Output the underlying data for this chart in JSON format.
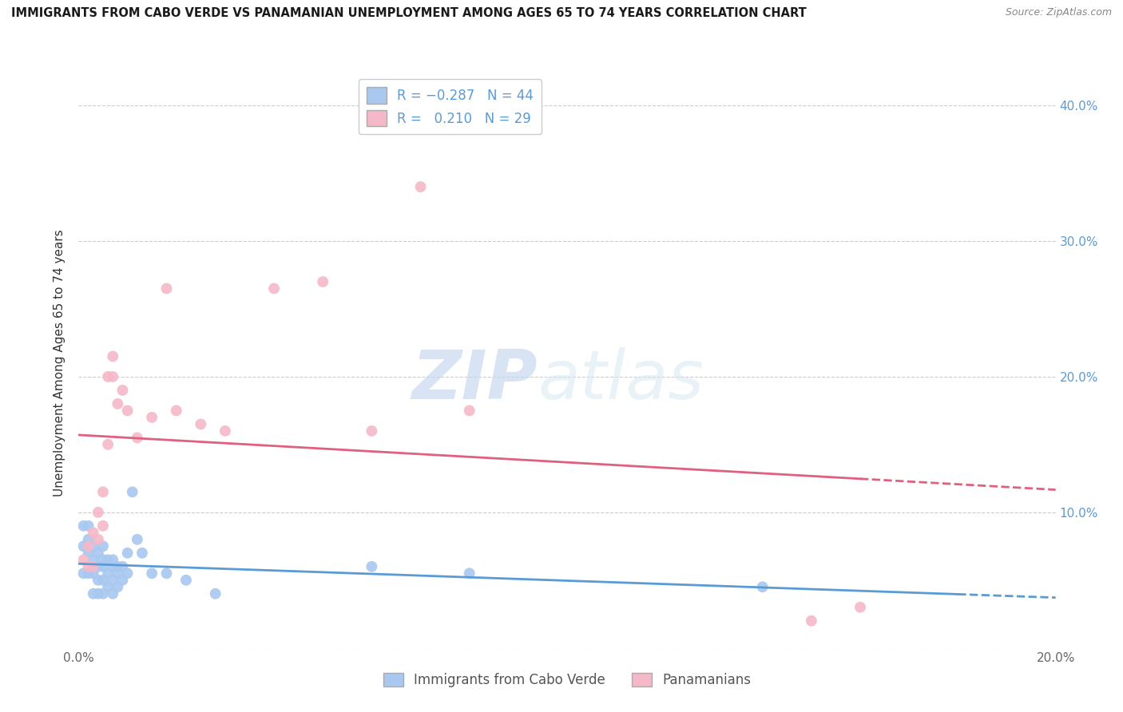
{
  "title": "IMMIGRANTS FROM CABO VERDE VS PANAMANIAN UNEMPLOYMENT AMONG AGES 65 TO 74 YEARS CORRELATION CHART",
  "source": "Source: ZipAtlas.com",
  "ylabel": "Unemployment Among Ages 65 to 74 years",
  "xlim": [
    0.0,
    0.2
  ],
  "ylim": [
    0.0,
    0.42
  ],
  "x_ticks": [
    0.0,
    0.05,
    0.1,
    0.15,
    0.2
  ],
  "x_tick_labels": [
    "0.0%",
    "",
    "",
    "",
    "20.0%"
  ],
  "y_ticks": [
    0.0,
    0.1,
    0.2,
    0.3,
    0.4
  ],
  "y_tick_labels_right": [
    "",
    "10.0%",
    "20.0%",
    "30.0%",
    "40.0%"
  ],
  "legend_label1": "Immigrants from Cabo Verde",
  "legend_label2": "Panamanians",
  "cabo_verde_color": "#a8c8f0",
  "panama_color": "#f5b8c8",
  "cabo_verde_line_color": "#5b9bd5",
  "panama_line_color": "#e06080",
  "watermark_zip": "ZIP",
  "watermark_atlas": "atlas",
  "cabo_verde_x": [
    0.001,
    0.001,
    0.001,
    0.002,
    0.002,
    0.002,
    0.002,
    0.003,
    0.003,
    0.003,
    0.003,
    0.004,
    0.004,
    0.004,
    0.004,
    0.005,
    0.005,
    0.005,
    0.005,
    0.005,
    0.006,
    0.006,
    0.006,
    0.007,
    0.007,
    0.007,
    0.007,
    0.008,
    0.008,
    0.008,
    0.009,
    0.009,
    0.01,
    0.01,
    0.011,
    0.012,
    0.013,
    0.015,
    0.018,
    0.022,
    0.028,
    0.06,
    0.08,
    0.14
  ],
  "cabo_verde_y": [
    0.09,
    0.075,
    0.055,
    0.09,
    0.08,
    0.07,
    0.055,
    0.075,
    0.065,
    0.055,
    0.04,
    0.07,
    0.06,
    0.05,
    0.04,
    0.075,
    0.065,
    0.06,
    0.05,
    0.04,
    0.065,
    0.055,
    0.045,
    0.065,
    0.06,
    0.05,
    0.04,
    0.06,
    0.055,
    0.045,
    0.06,
    0.05,
    0.07,
    0.055,
    0.115,
    0.08,
    0.07,
    0.055,
    0.055,
    0.05,
    0.04,
    0.06,
    0.055,
    0.045
  ],
  "panama_x": [
    0.001,
    0.002,
    0.002,
    0.003,
    0.003,
    0.004,
    0.004,
    0.005,
    0.005,
    0.006,
    0.006,
    0.007,
    0.007,
    0.008,
    0.009,
    0.01,
    0.012,
    0.015,
    0.018,
    0.02,
    0.025,
    0.03,
    0.04,
    0.05,
    0.06,
    0.07,
    0.08,
    0.15,
    0.16
  ],
  "panama_y": [
    0.065,
    0.075,
    0.06,
    0.085,
    0.06,
    0.1,
    0.08,
    0.115,
    0.09,
    0.15,
    0.2,
    0.215,
    0.2,
    0.18,
    0.19,
    0.175,
    0.155,
    0.17,
    0.265,
    0.175,
    0.165,
    0.16,
    0.265,
    0.27,
    0.16,
    0.34,
    0.175,
    0.02,
    0.03
  ]
}
